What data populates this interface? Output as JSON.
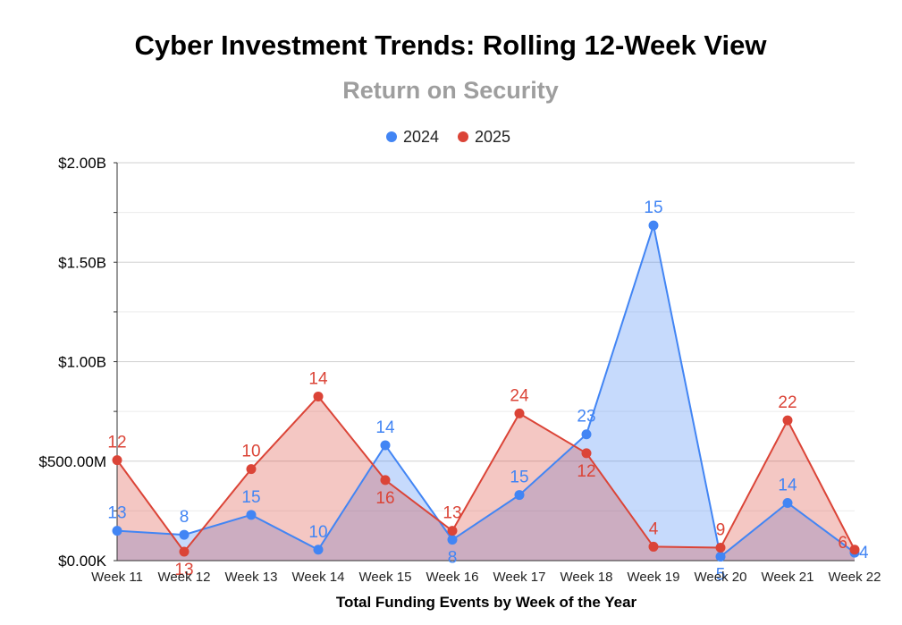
{
  "chart_data": {
    "type": "area",
    "title": "Cyber Investment Trends: Rolling 12-Week View",
    "subtitle": "Return on Security",
    "xlabel": "Total Funding Events by Week of the Year",
    "ylabel": "",
    "ylim": [
      0,
      2000000000
    ],
    "yticks": [
      {
        "value": 0,
        "label": "$0.00K"
      },
      {
        "value": 500000000,
        "label": "$500.00M"
      },
      {
        "value": 1000000000,
        "label": "$1.00B"
      },
      {
        "value": 1500000000,
        "label": "$1.50B"
      },
      {
        "value": 2000000000,
        "label": "$2.00B"
      }
    ],
    "grid": true,
    "legend_position": "top",
    "categories": [
      "Week 11",
      "Week 12",
      "Week 13",
      "Week 14",
      "Week 15",
      "Week 16",
      "Week 17",
      "Week 18",
      "Week 19",
      "Week 20",
      "Week 21",
      "Week 22"
    ],
    "series": [
      {
        "name": "2024",
        "color": "#4285f4",
        "fill": "#c5d9f9",
        "values": [
          150000000,
          130000000,
          230000000,
          55000000,
          580000000,
          105000000,
          330000000,
          635000000,
          1685000000,
          20000000,
          290000000,
          40000000
        ],
        "labels": [
          "13",
          "8",
          "15",
          "10",
          "14",
          "8",
          "15",
          "23",
          "15",
          "5",
          "14",
          "4"
        ]
      },
      {
        "name": "2025",
        "color": "#db4437",
        "fill": "#f5bcb7",
        "values": [
          505000000,
          45000000,
          460000000,
          825000000,
          405000000,
          150000000,
          740000000,
          540000000,
          70000000,
          65000000,
          705000000,
          55000000
        ],
        "labels": [
          "12",
          "13",
          "10",
          "14",
          "16",
          "13",
          "24",
          "12",
          "4",
          "9",
          "22",
          "6"
        ]
      }
    ]
  }
}
